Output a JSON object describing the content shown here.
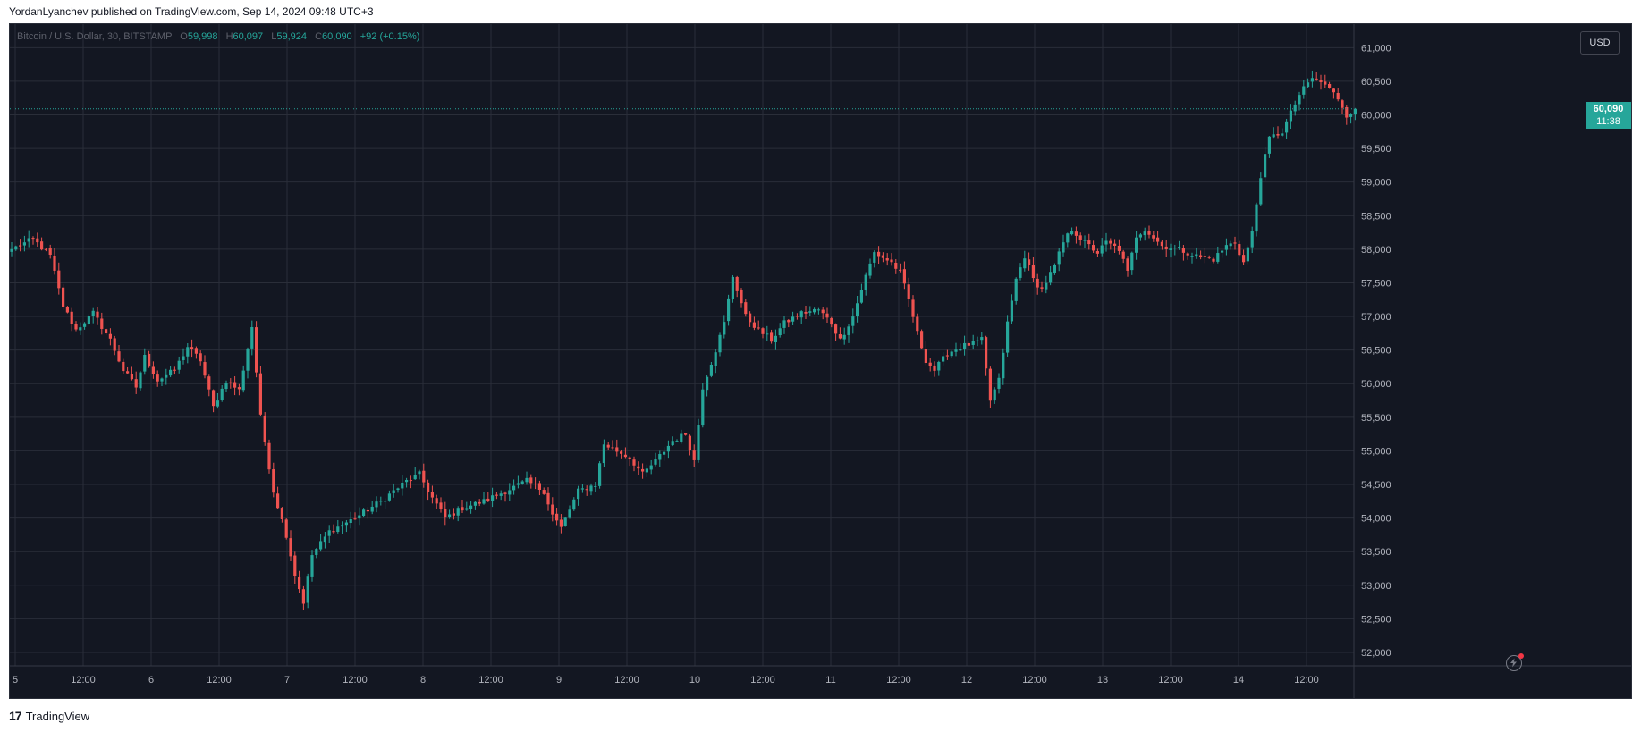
{
  "header": {
    "published": "YordanLyanchev published on TradingView.com, Sep 14, 2024 09:48 UTC+3"
  },
  "legend": {
    "symbol": "Bitcoin / U.S. Dollar, 30, BITSTAMP",
    "o_label": "O",
    "o": "59,998",
    "h_label": "H",
    "h": "60,097",
    "l_label": "L",
    "l": "59,924",
    "c_label": "C",
    "c": "60,090",
    "change": "+92 (+0.15%)"
  },
  "currency_button": "USD",
  "last_price": {
    "price": "60,090",
    "countdown": "11:38"
  },
  "footer": {
    "brand": "TradingView",
    "logo": "tradingview-logo"
  },
  "colors": {
    "background": "#131722",
    "grid": "#2a2e39",
    "up": "#26a69a",
    "down": "#ef5350",
    "axis_text": "#b2b5be"
  },
  "chart_data": {
    "type": "candlestick",
    "interval": "30",
    "exchange": "BITSTAMP",
    "ylim": [
      51800,
      61350
    ],
    "y_ticks": [
      "52,000",
      "52,500",
      "53,000",
      "53,500",
      "54,000",
      "54,500",
      "55,000",
      "55,500",
      "56,000",
      "56,500",
      "57,000",
      "57,500",
      "58,000",
      "58,500",
      "59,000",
      "59,500",
      "60,000",
      "60,500",
      "61,000"
    ],
    "x_ticks": [
      "5",
      "12:00",
      "6",
      "12:00",
      "7",
      "12:00",
      "8",
      "12:00",
      "9",
      "12:00",
      "10",
      "12:00",
      "11",
      "12:00",
      "12",
      "12:00",
      "13",
      "12:00",
      "14",
      "12:00"
    ],
    "last_close": 60090,
    "path": [
      [
        0,
        58000
      ],
      [
        5,
        58150
      ],
      [
        9,
        57900
      ],
      [
        12,
        57150
      ],
      [
        15,
        56800
      ],
      [
        19,
        57050
      ],
      [
        23,
        56650
      ],
      [
        26,
        56200
      ],
      [
        29,
        55950
      ],
      [
        31,
        56400
      ],
      [
        34,
        56050
      ],
      [
        38,
        56200
      ],
      [
        41,
        56550
      ],
      [
        44,
        56350
      ],
      [
        47,
        55650
      ],
      [
        50,
        56050
      ],
      [
        53,
        55900
      ],
      [
        56,
        56850
      ],
      [
        58,
        55500
      ],
      [
        61,
        54400
      ],
      [
        64,
        53750
      ],
      [
        66,
        53150
      ],
      [
        68,
        52750
      ],
      [
        70,
        53450
      ],
      [
        74,
        53800
      ],
      [
        80,
        54000
      ],
      [
        86,
        54250
      ],
      [
        92,
        54550
      ],
      [
        95,
        54650
      ],
      [
        98,
        54300
      ],
      [
        101,
        54000
      ],
      [
        105,
        54150
      ],
      [
        110,
        54250
      ],
      [
        115,
        54400
      ],
      [
        120,
        54550
      ],
      [
        124,
        54400
      ],
      [
        126,
        54050
      ],
      [
        128,
        53850
      ],
      [
        132,
        54400
      ],
      [
        136,
        54500
      ],
      [
        138,
        55100
      ],
      [
        141,
        55000
      ],
      [
        144,
        54900
      ],
      [
        147,
        54650
      ],
      [
        150,
        54850
      ],
      [
        154,
        55150
      ],
      [
        157,
        55250
      ],
      [
        159,
        54850
      ],
      [
        161,
        55950
      ],
      [
        164,
        56500
      ],
      [
        166,
        56900
      ],
      [
        168,
        57600
      ],
      [
        171,
        57000
      ],
      [
        174,
        56800
      ],
      [
        177,
        56650
      ],
      [
        180,
        56900
      ],
      [
        184,
        57050
      ],
      [
        188,
        57100
      ],
      [
        191,
        56900
      ],
      [
        193,
        56650
      ],
      [
        196,
        57000
      ],
      [
        199,
        57600
      ],
      [
        201,
        57950
      ],
      [
        205,
        57800
      ],
      [
        207,
        57650
      ],
      [
        209,
        57250
      ],
      [
        211,
        56750
      ],
      [
        213,
        56350
      ],
      [
        215,
        56200
      ],
      [
        218,
        56450
      ],
      [
        221,
        56550
      ],
      [
        224,
        56600
      ],
      [
        226,
        56650
      ],
      [
        228,
        55750
      ],
      [
        230,
        56050
      ],
      [
        232,
        56900
      ],
      [
        234,
        57550
      ],
      [
        236,
        57900
      ],
      [
        238,
        57550
      ],
      [
        240,
        57400
      ],
      [
        243,
        57750
      ],
      [
        245,
        58100
      ],
      [
        247,
        58300
      ],
      [
        250,
        58100
      ],
      [
        253,
        57950
      ],
      [
        255,
        58100
      ],
      [
        258,
        58000
      ],
      [
        260,
        57650
      ],
      [
        262,
        58200
      ],
      [
        264,
        58300
      ],
      [
        268,
        58050
      ],
      [
        272,
        58000
      ],
      [
        276,
        57900
      ],
      [
        280,
        57850
      ],
      [
        283,
        58050
      ],
      [
        285,
        58100
      ],
      [
        287,
        57800
      ],
      [
        289,
        58250
      ],
      [
        291,
        59100
      ],
      [
        293,
        59650
      ],
      [
        296,
        59750
      ],
      [
        300,
        60300
      ],
      [
        303,
        60550
      ],
      [
        306,
        60450
      ],
      [
        309,
        60250
      ],
      [
        311,
        60000
      ],
      [
        313,
        60090
      ]
    ]
  }
}
